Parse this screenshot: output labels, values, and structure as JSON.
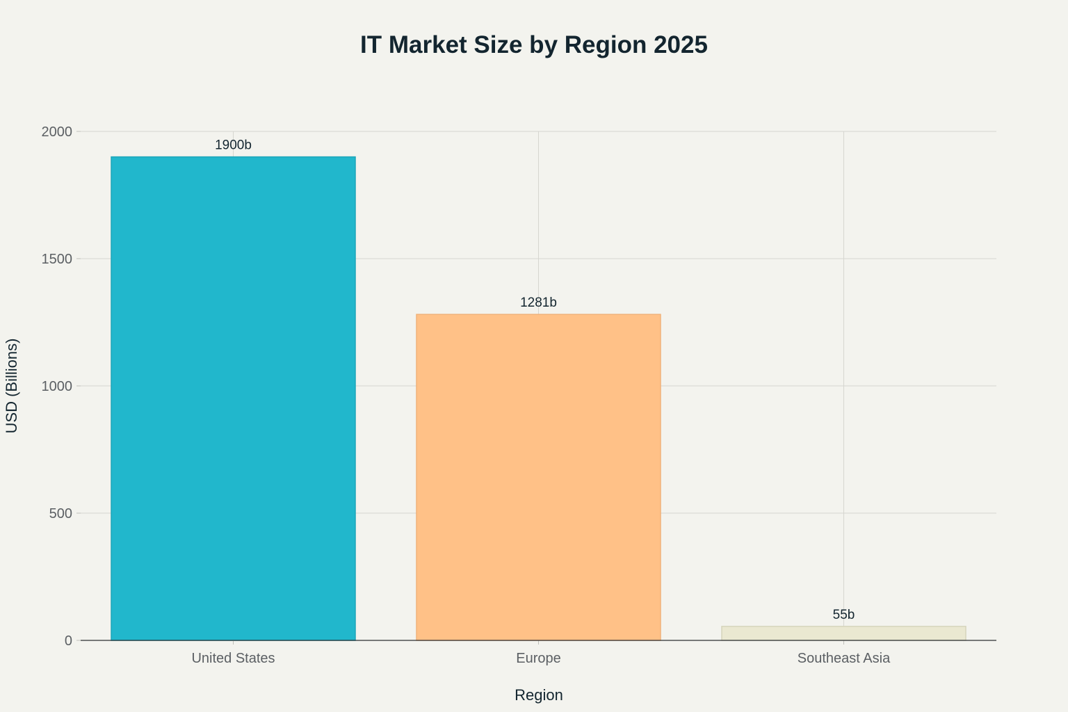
{
  "chart_data": {
    "type": "bar",
    "title": "IT Market Size by Region 2025",
    "xlabel": "Region",
    "ylabel": "USD (Billions)",
    "categories": [
      "United States",
      "Europe",
      "Southeast Asia"
    ],
    "values": [
      1900,
      1281,
      55
    ],
    "data_labels": [
      "1900b",
      "1281b",
      "55b"
    ],
    "colors": [
      "#21b7cc",
      "#ffc187",
      "#eae8d1"
    ],
    "bar_outline_colors": [
      "#1ea6b9",
      "#f0b27a",
      "#d6d4bb"
    ],
    "ylim": [
      0,
      2000
    ],
    "yticks": [
      0,
      500,
      1000,
      1500,
      2000
    ],
    "ytick_labels": [
      "0",
      "500",
      "1000",
      "1500",
      "2000"
    ],
    "grid": true,
    "legend": false
  }
}
